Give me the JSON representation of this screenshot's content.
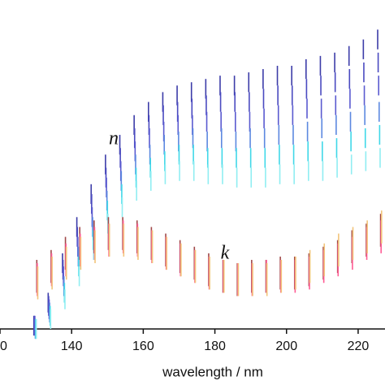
{
  "chart_data": {
    "type": "errorbar",
    "xlabel": "wavelength / nm",
    "annotations": [
      "n",
      "k"
    ],
    "x": [
      130,
      134,
      138,
      142,
      146,
      150,
      154,
      158,
      162,
      166,
      170,
      174,
      178,
      182,
      186,
      190,
      194,
      198,
      202,
      206,
      210,
      214,
      218,
      222,
      226
    ],
    "xlim": [
      120,
      227.5
    ],
    "xticks": [
      {
        "value": 120,
        "label": "0"
      },
      140,
      160,
      180,
      200,
      220
    ],
    "ylim": [
      0,
      100
    ],
    "series": [
      {
        "color": "#3c3ca8",
        "error": 3,
        "values": [
          1,
          8,
          20,
          31,
          41,
          50,
          56,
          62,
          66,
          69,
          71,
          72,
          73,
          74,
          74,
          75,
          76,
          77,
          77,
          79,
          80,
          81,
          83,
          85,
          88
        ]
      },
      {
        "color": "#4a4ac0",
        "error": 3,
        "values": [
          1,
          7,
          18,
          28,
          38,
          46,
          52,
          58,
          62,
          65,
          66,
          67,
          68,
          69,
          69,
          69,
          70,
          71,
          71,
          73,
          74,
          75,
          76,
          78,
          81
        ]
      },
      {
        "color": "#5a5ad0",
        "error": 3,
        "values": [
          1,
          6,
          16,
          25,
          34,
          43,
          48,
          54,
          58,
          60,
          62,
          62,
          63,
          63,
          63,
          63,
          64,
          65,
          65,
          67,
          67,
          68,
          70,
          71,
          74
        ]
      },
      {
        "color": "#5c88e0",
        "error": 3,
        "values": [
          0,
          5,
          13,
          22,
          31,
          39,
          45,
          50,
          53,
          56,
          57,
          58,
          57,
          58,
          57,
          58,
          58,
          59,
          59,
          60,
          61,
          62,
          63,
          65,
          66
        ]
      },
      {
        "color": "#40d8e8",
        "error": 3,
        "values": [
          0,
          4,
          11,
          19,
          27,
          36,
          41,
          46,
          49,
          51,
          53,
          53,
          52,
          52,
          52,
          52,
          52,
          53,
          53,
          54,
          54,
          55,
          57,
          58,
          59
        ]
      },
      {
        "color": "#90eef2",
        "error": 3,
        "values": [
          0,
          3,
          9,
          16,
          24,
          32,
          37,
          42,
          45,
          47,
          48,
          48,
          47,
          47,
          46,
          46,
          46,
          47,
          47,
          48,
          48,
          49,
          50,
          51,
          52
        ]
      },
      {
        "color": "#a04848",
        "error": 5,
        "values": [
          16,
          19,
          23,
          26,
          28,
          29,
          29,
          28,
          26,
          24,
          22,
          20,
          18,
          16,
          15,
          16,
          16,
          17,
          17,
          18,
          20,
          22,
          25,
          27,
          30
        ]
      },
      {
        "color": "#ff5c94",
        "error": 5,
        "values": [
          15,
          18,
          21,
          24,
          26,
          27,
          28,
          27,
          25,
          23,
          21,
          19,
          17,
          16,
          15,
          15,
          16,
          16,
          16,
          17,
          19,
          21,
          23,
          26,
          28
        ]
      },
      {
        "color": "#f2c47a",
        "error": 5,
        "values": [
          14,
          17,
          20,
          23,
          25,
          27,
          27,
          26,
          25,
          23,
          21,
          19,
          17,
          16,
          15,
          15,
          15,
          16,
          17,
          19,
          21,
          24,
          26,
          28,
          31
        ]
      }
    ]
  }
}
